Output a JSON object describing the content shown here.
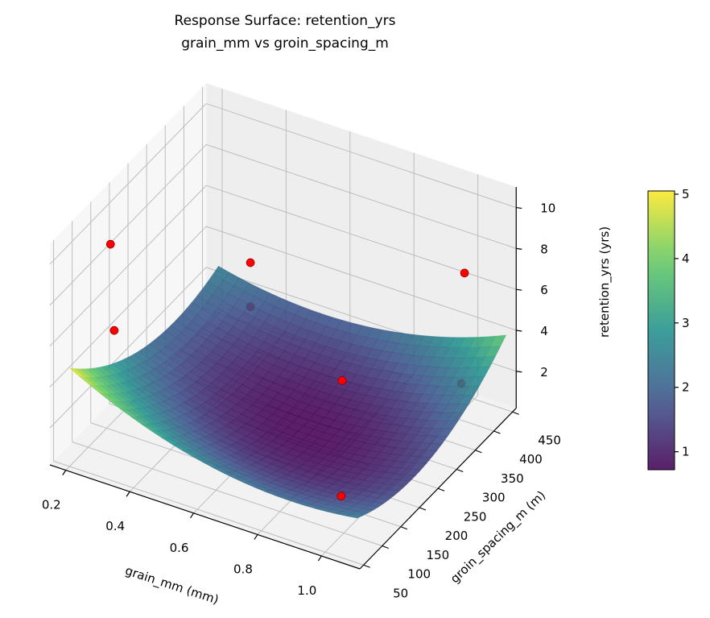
{
  "chart_data": {
    "type": "surface3d",
    "title": "Response Surface: retention_yrs",
    "subtitle": "grain_mm vs groin_spacing_m",
    "xlabel": "grain_mm (mm)",
    "ylabel": "groin_spacing_m (m)",
    "zlabel": "retention_yrs (yrs)",
    "xlim": [
      0.15,
      1.12
    ],
    "ylim": [
      40,
      460
    ],
    "zlim": [
      0.2,
      11
    ],
    "xticks": [
      "0.2",
      "0.4",
      "0.6",
      "0.8",
      "1.0"
    ],
    "yticks": [
      "50",
      "100",
      "150",
      "200",
      "250",
      "300",
      "350",
      "400",
      "450"
    ],
    "zticks": [
      "2",
      "4",
      "6",
      "8",
      "10"
    ],
    "colorbar": {
      "range": [
        0.72,
        5.05
      ],
      "ticks": [
        "1",
        "2",
        "3",
        "4",
        "5"
      ],
      "colormap": "viridis"
    },
    "surface": {
      "model": "quadratic",
      "x_range": [
        0.2,
        1.1
      ],
      "y_range": [
        50,
        450
      ],
      "min_value": 0.7,
      "max_value": 5.0
    },
    "points": [
      {
        "x": 0.2,
        "y": 160,
        "z": 9.0
      },
      {
        "x": 0.2,
        "y": 170,
        "z": 4.6
      },
      {
        "x": 0.3,
        "y": 450,
        "z": 3.2
      },
      {
        "x": 0.3,
        "y": 450,
        "z": 1.05
      },
      {
        "x": 0.97,
        "y": 450,
        "z": 6.2
      },
      {
        "x": 0.82,
        "y": 250,
        "z": 3.9
      },
      {
        "x": 0.96,
        "y": 450,
        "z": 0.75
      },
      {
        "x": 1.05,
        "y": 50,
        "z": 3.2
      }
    ],
    "point_color": "#ff0000",
    "grid": true
  }
}
